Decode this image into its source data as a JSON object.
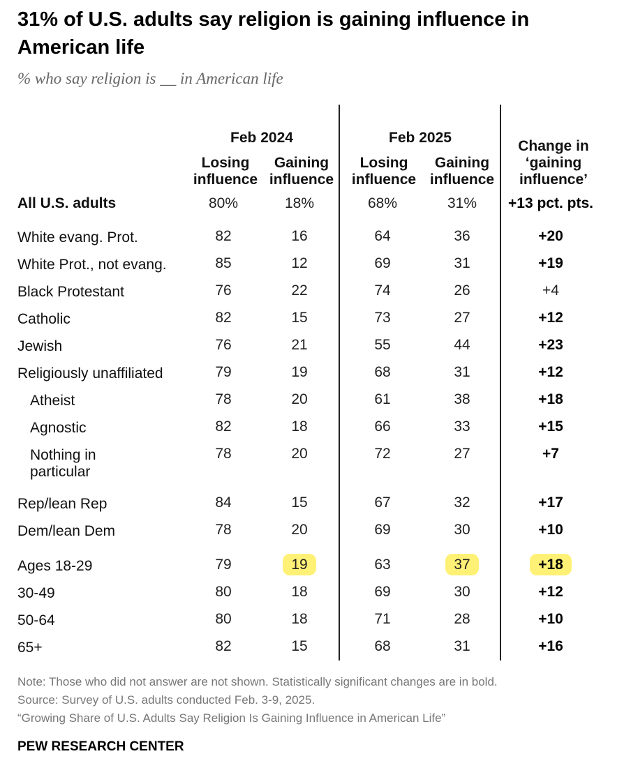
{
  "header": {
    "title": "31% of U.S. adults say religion is gaining influence in American life",
    "subtitle": "% who say religion is __ in American life"
  },
  "columns": {
    "group_2024": "Feb 2024",
    "group_2025": "Feb 2025",
    "losing": [
      "Losing",
      "influence"
    ],
    "gaining": [
      "Gaining",
      "influence"
    ],
    "change": [
      "Change in",
      "‘gaining",
      "influence’"
    ]
  },
  "chart_data": {
    "type": "table",
    "title": "31% of U.S. adults say religion is gaining influence in American life",
    "subtitle": "% who say religion is __ in American life",
    "columns": [
      "Feb 2024 Losing influence",
      "Feb 2024 Gaining influence",
      "Feb 2025 Losing influence",
      "Feb 2025 Gaining influence",
      "Change in ‘gaining influence’"
    ],
    "rows": [
      {
        "label": "All U.S. adults",
        "lose24": "80%",
        "gain24": "18%",
        "lose25": "68%",
        "gain25": "31%",
        "change": "+13 pct. pts.",
        "bold": true
      },
      {
        "label": "White evang. Prot.",
        "lose24": "82",
        "gain24": "16",
        "lose25": "64",
        "gain25": "36",
        "change": "+20",
        "bold": true
      },
      {
        "label": "White Prot., not evang.",
        "lose24": "85",
        "gain24": "12",
        "lose25": "69",
        "gain25": "31",
        "change": "+19",
        "bold": true
      },
      {
        "label": "Black Protestant",
        "lose24": "76",
        "gain24": "22",
        "lose25": "74",
        "gain25": "26",
        "change": "+4",
        "bold": false
      },
      {
        "label": "Catholic",
        "lose24": "82",
        "gain24": "15",
        "lose25": "73",
        "gain25": "27",
        "change": "+12",
        "bold": true
      },
      {
        "label": "Jewish",
        "lose24": "76",
        "gain24": "21",
        "lose25": "55",
        "gain25": "44",
        "change": "+23",
        "bold": true
      },
      {
        "label": "Religiously unaffiliated",
        "lose24": "79",
        "gain24": "19",
        "lose25": "68",
        "gain25": "31",
        "change": "+12",
        "bold": true
      },
      {
        "label": "Atheist",
        "lose24": "78",
        "gain24": "20",
        "lose25": "61",
        "gain25": "38",
        "change": "+18",
        "bold": true,
        "sub": true
      },
      {
        "label": "Agnostic",
        "lose24": "82",
        "gain24": "18",
        "lose25": "66",
        "gain25": "33",
        "change": "+15",
        "bold": true,
        "sub": true
      },
      {
        "label": "Nothing in particular",
        "label_lines": [
          "Nothing in",
          "particular"
        ],
        "lose24": "78",
        "gain24": "20",
        "lose25": "72",
        "gain25": "27",
        "change": "+7",
        "bold": true,
        "sub": true
      },
      {
        "label": "Rep/lean Rep",
        "lose24": "84",
        "gain24": "15",
        "lose25": "67",
        "gain25": "32",
        "change": "+17",
        "bold": true
      },
      {
        "label": "Dem/lean Dem",
        "lose24": "78",
        "gain24": "20",
        "lose25": "69",
        "gain25": "30",
        "change": "+10",
        "bold": true
      },
      {
        "label": "Ages 18-29",
        "lose24": "79",
        "gain24": "19",
        "lose25": "63",
        "gain25": "37",
        "change": "+18",
        "bold": true,
        "highlight": true
      },
      {
        "label": "30-49",
        "lose24": "80",
        "gain24": "18",
        "lose25": "69",
        "gain25": "30",
        "change": "+12",
        "bold": true
      },
      {
        "label": "50-64",
        "lose24": "80",
        "gain24": "18",
        "lose25": "71",
        "gain25": "28",
        "change": "+10",
        "bold": true
      },
      {
        "label": "65+",
        "lose24": "82",
        "gain24": "15",
        "lose25": "68",
        "gain25": "31",
        "change": "+16",
        "bold": true
      }
    ]
  },
  "footer": {
    "note": "Note: Those who did not answer are not shown. Statistically significant changes are in bold.",
    "source": "Source: Survey of U.S. adults conducted Feb. 3-9, 2025.",
    "report": "“Growing Share of U.S. Adults Say Religion Is Gaining Influence in American Life”",
    "brand": "PEW RESEARCH CENTER"
  },
  "colors": {
    "highlight": "#fff176",
    "text": "#1a1a1a",
    "note": "#777777"
  }
}
